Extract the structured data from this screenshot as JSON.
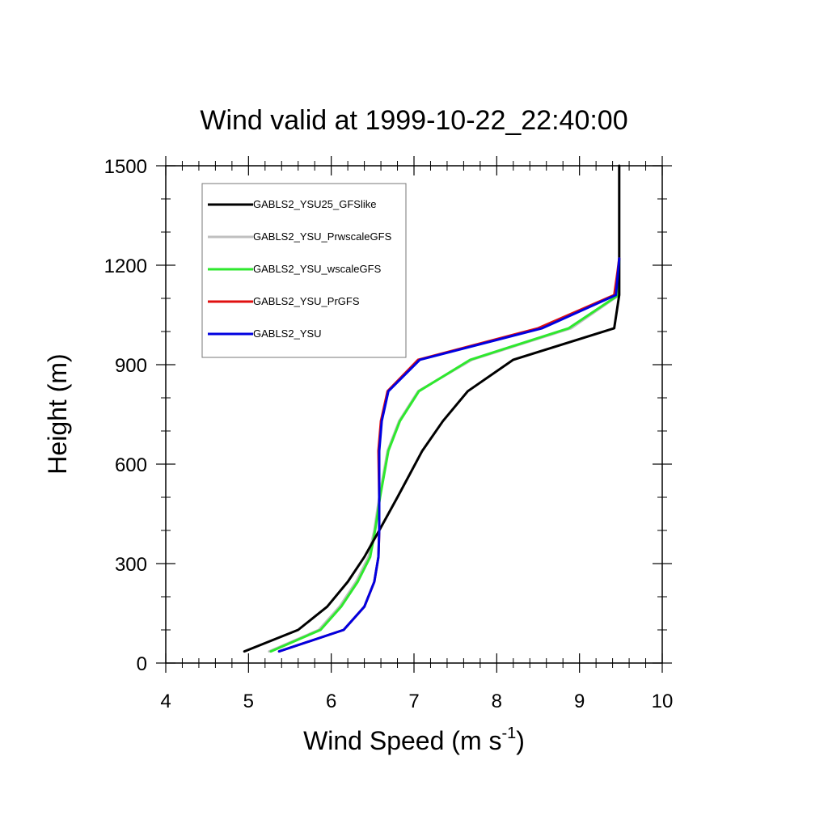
{
  "chart_data": {
    "type": "line",
    "title": "Wind valid at 1999-10-22_22:40:00",
    "xlabel": "Wind Speed (m s",
    "xlabel_sup": "-1",
    "xlabel_end": ")",
    "ylabel": "Height (m)",
    "xlim": [
      4,
      10
    ],
    "ylim": [
      0,
      1500
    ],
    "xticks": [
      "4",
      "5",
      "6",
      "7",
      "8",
      "9",
      "10"
    ],
    "yticks": [
      "0",
      "300",
      "600",
      "900",
      "1200",
      "1500"
    ],
    "grid": false,
    "legend_position": "top-left",
    "series": [
      {
        "name": "GABLS2_YSU25_GFSlike",
        "color": "#000000",
        "points": [
          [
            4.95,
            35
          ],
          [
            5.6,
            100
          ],
          [
            5.95,
            170
          ],
          [
            6.2,
            245
          ],
          [
            6.4,
            320
          ],
          [
            6.58,
            400
          ],
          [
            6.8,
            500
          ],
          [
            7.1,
            640
          ],
          [
            7.35,
            730
          ],
          [
            7.65,
            820
          ],
          [
            8.2,
            915
          ],
          [
            9.42,
            1010
          ],
          [
            9.48,
            1110
          ],
          [
            9.48,
            1200
          ],
          [
            9.48,
            1300
          ],
          [
            9.48,
            1400
          ],
          [
            9.48,
            1500
          ]
        ]
      },
      {
        "name": "GABLS2_YSU_PrwscaleGFS",
        "color": "#bfbfbf",
        "points": [
          [
            5.25,
            35
          ],
          [
            5.85,
            100
          ],
          [
            6.1,
            170
          ],
          [
            6.3,
            245
          ],
          [
            6.45,
            320
          ],
          [
            6.52,
            400
          ],
          [
            6.58,
            500
          ],
          [
            6.68,
            640
          ],
          [
            6.82,
            730
          ],
          [
            7.05,
            820
          ],
          [
            7.7,
            915
          ],
          [
            8.9,
            1010
          ],
          [
            9.48,
            1110
          ],
          [
            9.48,
            1220
          ]
        ]
      },
      {
        "name": "GABLS2_YSU_wscaleGFS",
        "color": "#2ee82e",
        "points": [
          [
            5.27,
            35
          ],
          [
            5.87,
            100
          ],
          [
            6.12,
            170
          ],
          [
            6.32,
            245
          ],
          [
            6.47,
            320
          ],
          [
            6.53,
            400
          ],
          [
            6.59,
            500
          ],
          [
            6.69,
            640
          ],
          [
            6.83,
            730
          ],
          [
            7.06,
            820
          ],
          [
            7.68,
            915
          ],
          [
            8.87,
            1010
          ],
          [
            9.47,
            1110
          ],
          [
            9.48,
            1220
          ]
        ]
      },
      {
        "name": "GABLS2_YSU_PrGFS",
        "color": "#e01010",
        "points": [
          [
            5.37,
            35
          ],
          [
            6.15,
            100
          ],
          [
            6.4,
            170
          ],
          [
            6.52,
            245
          ],
          [
            6.57,
            320
          ],
          [
            6.58,
            400
          ],
          [
            6.58,
            500
          ],
          [
            6.57,
            640
          ],
          [
            6.6,
            730
          ],
          [
            6.68,
            820
          ],
          [
            7.05,
            915
          ],
          [
            8.5,
            1010
          ],
          [
            9.42,
            1110
          ],
          [
            9.46,
            1180
          ],
          [
            9.48,
            1220
          ]
        ]
      },
      {
        "name": "GABLS2_YSU",
        "color": "#0000e0",
        "points": [
          [
            5.37,
            35
          ],
          [
            6.15,
            100
          ],
          [
            6.4,
            170
          ],
          [
            6.52,
            245
          ],
          [
            6.57,
            320
          ],
          [
            6.58,
            400
          ],
          [
            6.58,
            500
          ],
          [
            6.58,
            640
          ],
          [
            6.61,
            730
          ],
          [
            6.69,
            820
          ],
          [
            7.07,
            915
          ],
          [
            8.55,
            1010
          ],
          [
            9.44,
            1110
          ],
          [
            9.48,
            1220
          ]
        ]
      }
    ]
  }
}
